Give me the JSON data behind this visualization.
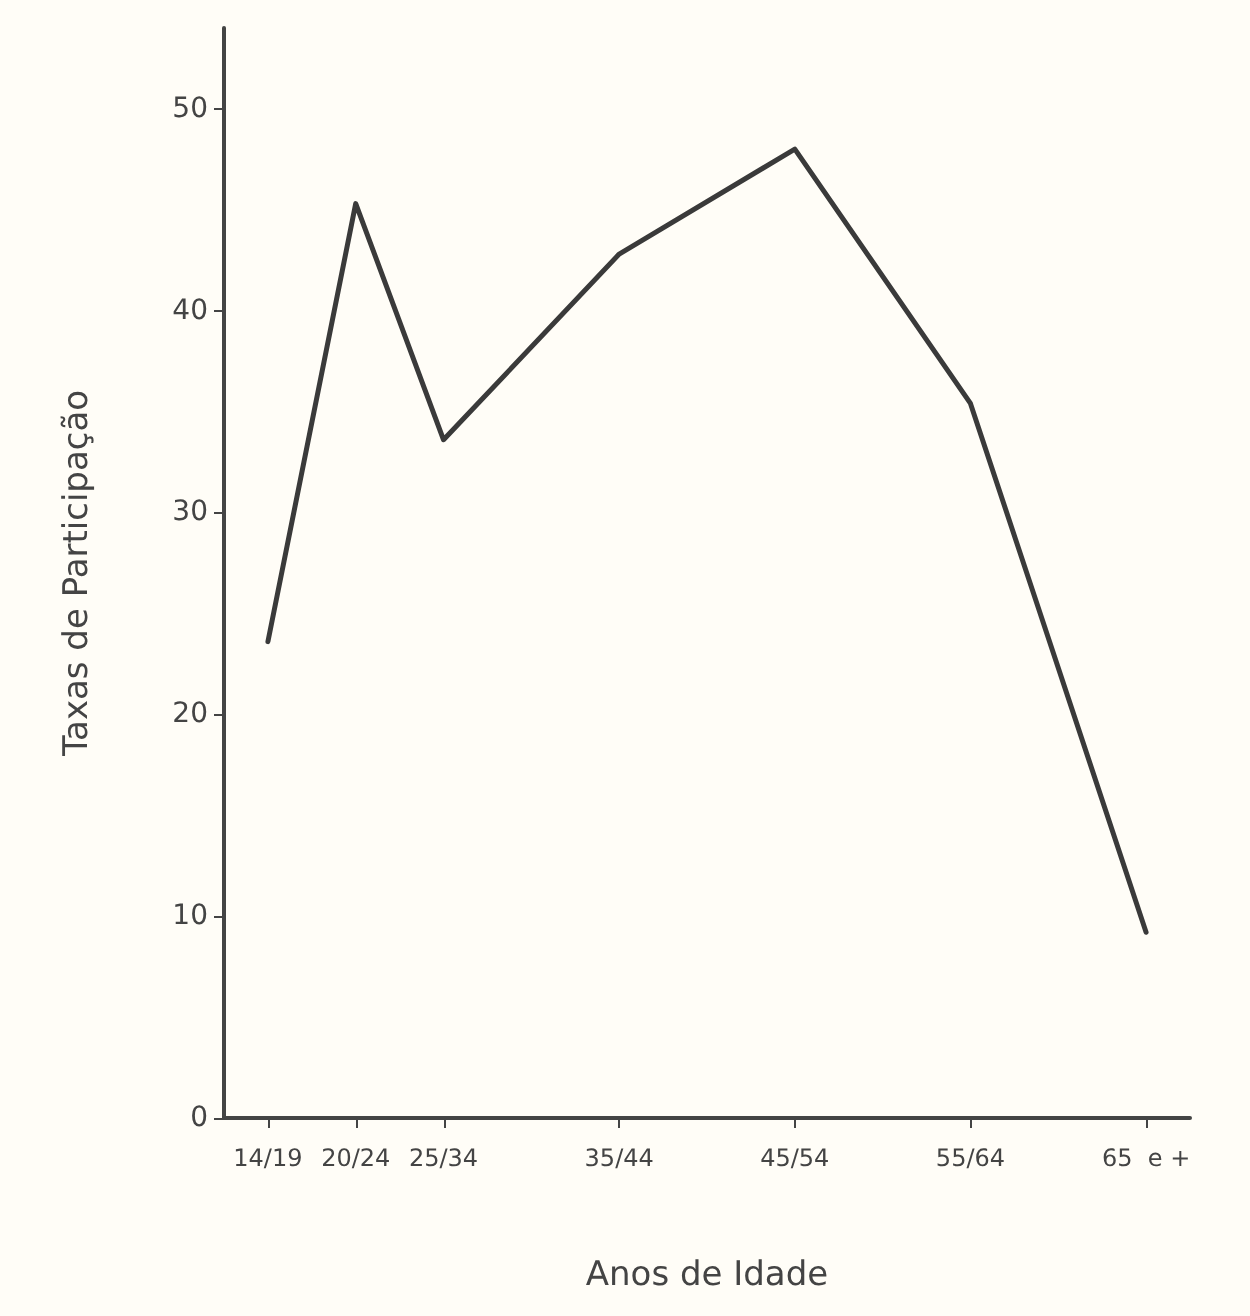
{
  "chart_data": {
    "type": "line",
    "xlabel": "Anos de Idade",
    "ylabel": "Taxas de Participação",
    "categories": [
      "14/19",
      "20/24",
      "25/34",
      null,
      "35/44",
      null,
      "45/54",
      null,
      "55/64",
      null,
      "65  e +"
    ],
    "series": [
      {
        "color": "#3a3a3a",
        "values": [
          23.6,
          45.3,
          33.6,
          null,
          42.8,
          null,
          48.0,
          null,
          35.4,
          null,
          9.2
        ]
      }
    ],
    "ylim": [
      0,
      54
    ],
    "yticks": [
      0,
      10,
      20,
      30,
      40,
      50
    ],
    "grid": false,
    "marker": "none",
    "line_style": "solid"
  }
}
